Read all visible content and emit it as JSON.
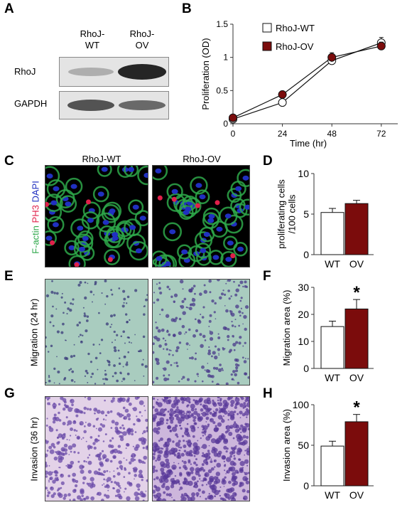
{
  "labels": {
    "A": "A",
    "B": "B",
    "C": "C",
    "D": "D",
    "E": "E",
    "F": "F",
    "G": "G",
    "H": "H"
  },
  "panelA": {
    "col1": [
      "RhoJ-",
      "WT"
    ],
    "col2": [
      "RhoJ-",
      "OV"
    ],
    "row1": "RhoJ",
    "row2": "GAPDH"
  },
  "panelC": {
    "col1": "RhoJ-WT",
    "col2": "RhoJ-OV",
    "stain_factin": "F-actin",
    "stain_ph3": "PH3",
    "stain_dapi": "DAPI",
    "colors": {
      "factin": "#2ea84a",
      "ph3": "#e0204a",
      "dapi": "#2030c0"
    }
  },
  "panelE": {
    "ylabel": "Migration (24 hr)"
  },
  "panelG": {
    "ylabel": "Invasion (36 hr)"
  },
  "chart_data": [
    {
      "panel": "B",
      "type": "line",
      "xlabel": "Time (hr)",
      "ylabel": "Proliferation (OD)",
      "x": [
        0,
        24,
        48,
        72
      ],
      "xticks": [
        "0",
        "24",
        "48",
        "72"
      ],
      "yticks": [
        "0",
        "0.5",
        "1",
        "1.5"
      ],
      "ylim": [
        0,
        1.5
      ],
      "legend_position": "top-left",
      "series": [
        {
          "name": "RhoJ-WT",
          "values": [
            0.07,
            0.32,
            0.95,
            1.22
          ],
          "errors": [
            0.02,
            0.02,
            0.04,
            0.08
          ],
          "color": "#ffffff"
        },
        {
          "name": "RhoJ-OV",
          "values": [
            0.09,
            0.44,
            1.0,
            1.17
          ],
          "errors": [
            0.02,
            0.02,
            0.07,
            0.06
          ],
          "color": "#7b0c0c"
        }
      ]
    },
    {
      "panel": "D",
      "type": "bar",
      "ylabel_lines": [
        "proliferating cells",
        "/100 cells"
      ],
      "categories": [
        "WT",
        "OV"
      ],
      "values": [
        5.2,
        6.3
      ],
      "errors": [
        0.5,
        0.4
      ],
      "ylim": [
        0,
        10
      ],
      "yticks": [
        "0",
        "5",
        "10"
      ],
      "significance": [
        "",
        ""
      ],
      "colors": [
        "#ffffff",
        "#7b0c0c"
      ]
    },
    {
      "panel": "F",
      "type": "bar",
      "ylabel_lines": [
        "Migration area (%)"
      ],
      "categories": [
        "WT",
        "OV"
      ],
      "values": [
        15.5,
        22
      ],
      "errors": [
        2,
        3.5
      ],
      "ylim": [
        0,
        30
      ],
      "yticks": [
        "0",
        "10",
        "20",
        "30"
      ],
      "significance": [
        "",
        "*"
      ],
      "colors": [
        "#ffffff",
        "#7b0c0c"
      ]
    },
    {
      "panel": "H",
      "type": "bar",
      "ylabel_lines": [
        "Invasion area (%)"
      ],
      "categories": [
        "WT",
        "OV"
      ],
      "values": [
        49,
        79
      ],
      "errors": [
        6,
        9
      ],
      "ylim": [
        0,
        100
      ],
      "yticks": [
        "0",
        "50",
        "100"
      ],
      "significance": [
        "",
        "*"
      ],
      "colors": [
        "#ffffff",
        "#7b0c0c"
      ]
    }
  ]
}
